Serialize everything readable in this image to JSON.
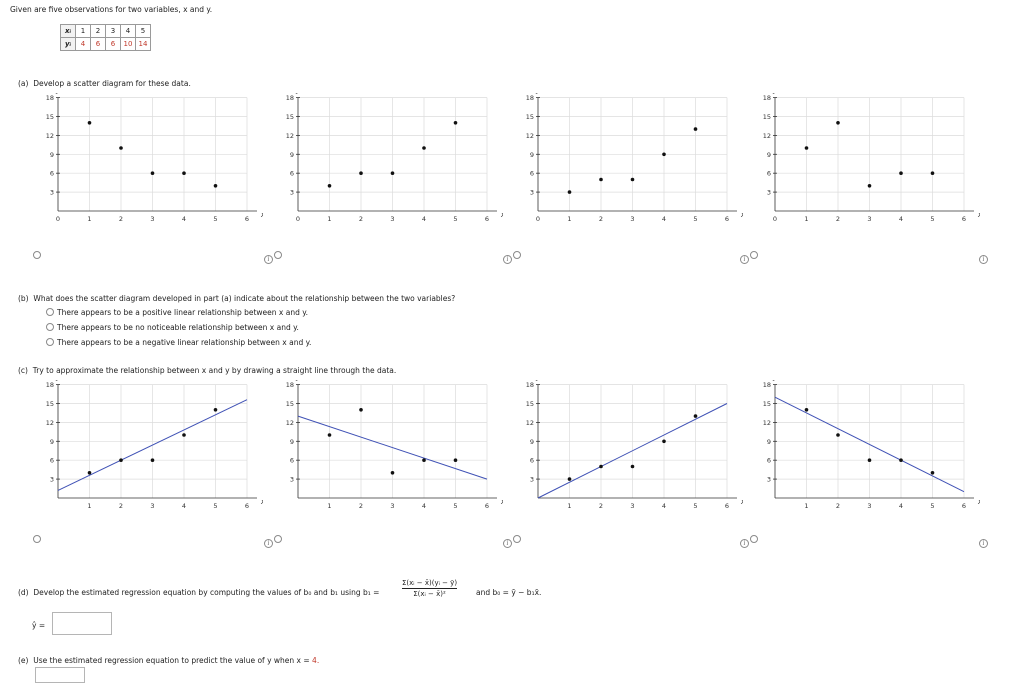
{
  "intro": "Given are five observations for two variables, x and y.",
  "table": {
    "x_label": "xᵢ",
    "y_label": "yᵢ",
    "x": [
      "1",
      "2",
      "3",
      "4",
      "5"
    ],
    "y": [
      "4",
      "6",
      "6",
      "10",
      "14"
    ]
  },
  "part_a": {
    "label": "(a)",
    "text": "Develop a scatter diagram for these data."
  },
  "part_b": {
    "label": "(b)",
    "text": "What does the scatter diagram developed in part (a) indicate about the relationship between the two variables?",
    "options": [
      "There appears to be a positive linear relationship between x and y.",
      "There appears to be no noticeable relationship between x and y.",
      "There appears to be a negative linear relationship between x and y."
    ]
  },
  "part_c": {
    "label": "(c)",
    "text": "Try to approximate the relationship between x and y by drawing a straight line through the data."
  },
  "part_d": {
    "label": "(d)",
    "text": "Develop the estimated regression equation by computing the values of b₀ and b₁ using b₁ =",
    "numerator": "Σ(xᵢ − x̄)(yᵢ − ȳ)",
    "denominator": "Σ(xᵢ − x̄)²",
    "tail": "and b₀ = ȳ − b₁x̄.",
    "yhat_label": "ŷ ="
  },
  "part_e": {
    "label": "(e)",
    "text_pre": "Use the estimated regression equation to predict the value of y when x = ",
    "x_value": "4."
  },
  "axis": {
    "xlabel": "x",
    "ylabel": "y"
  },
  "info_glyph": "i",
  "chart_data": [
    {
      "type": "scatter",
      "xlim": [
        0,
        6
      ],
      "ylim": [
        0,
        18
      ],
      "xticks": [
        0,
        1,
        2,
        3,
        4,
        5,
        6
      ],
      "yticks": [
        3,
        6,
        9,
        12,
        15,
        18
      ],
      "points": [
        [
          1,
          14
        ],
        [
          2,
          10
        ],
        [
          3,
          6
        ],
        [
          4,
          6
        ],
        [
          5,
          4
        ]
      ]
    },
    {
      "type": "scatter",
      "xlim": [
        0,
        6
      ],
      "ylim": [
        0,
        18
      ],
      "xticks": [
        0,
        1,
        2,
        3,
        4,
        5,
        6
      ],
      "yticks": [
        3,
        6,
        9,
        12,
        15,
        18
      ],
      "points": [
        [
          1,
          4
        ],
        [
          2,
          6
        ],
        [
          3,
          6
        ],
        [
          4,
          10
        ],
        [
          5,
          14
        ]
      ]
    },
    {
      "type": "scatter",
      "xlim": [
        0,
        6
      ],
      "ylim": [
        0,
        18
      ],
      "xticks": [
        0,
        1,
        2,
        3,
        4,
        5,
        6
      ],
      "yticks": [
        3,
        6,
        9,
        12,
        15,
        18
      ],
      "points": [
        [
          1,
          3
        ],
        [
          2,
          5
        ],
        [
          3,
          5
        ],
        [
          4,
          9
        ],
        [
          5,
          13
        ]
      ]
    },
    {
      "type": "scatter",
      "xlim": [
        0,
        6
      ],
      "ylim": [
        0,
        18
      ],
      "xticks": [
        0,
        1,
        2,
        3,
        4,
        5,
        6
      ],
      "yticks": [
        3,
        6,
        9,
        12,
        15,
        18
      ],
      "points": [
        [
          1,
          10
        ],
        [
          2,
          14
        ],
        [
          3,
          4
        ],
        [
          4,
          6
        ],
        [
          5,
          6
        ]
      ]
    },
    {
      "type": "scatter",
      "xlim": [
        0,
        6
      ],
      "ylim": [
        0,
        18
      ],
      "xticks": [
        1,
        2,
        3,
        4,
        5,
        6
      ],
      "yticks": [
        3,
        6,
        9,
        12,
        15,
        18
      ],
      "points": [
        [
          1,
          4
        ],
        [
          2,
          6
        ],
        [
          3,
          6
        ],
        [
          4,
          10
        ],
        [
          5,
          14
        ]
      ],
      "line": [
        [
          0,
          1.2
        ],
        [
          6,
          15.6
        ]
      ]
    },
    {
      "type": "scatter",
      "xlim": [
        0,
        6
      ],
      "ylim": [
        0,
        18
      ],
      "xticks": [
        1,
        2,
        3,
        4,
        5,
        6
      ],
      "yticks": [
        3,
        6,
        9,
        12,
        15,
        18
      ],
      "points": [
        [
          1,
          10
        ],
        [
          2,
          14
        ],
        [
          3,
          4
        ],
        [
          4,
          6
        ],
        [
          5,
          6
        ]
      ],
      "line": [
        [
          0,
          13
        ],
        [
          6,
          3
        ]
      ]
    },
    {
      "type": "scatter",
      "xlim": [
        0,
        6
      ],
      "ylim": [
        0,
        18
      ],
      "xticks": [
        1,
        2,
        3,
        4,
        5,
        6
      ],
      "yticks": [
        3,
        6,
        9,
        12,
        15,
        18
      ],
      "points": [
        [
          1,
          3
        ],
        [
          2,
          5
        ],
        [
          3,
          5
        ],
        [
          4,
          9
        ],
        [
          5,
          13
        ]
      ],
      "line": [
        [
          0,
          0
        ],
        [
          6,
          15
        ]
      ]
    },
    {
      "type": "scatter",
      "xlim": [
        0,
        6
      ],
      "ylim": [
        0,
        18
      ],
      "xticks": [
        1,
        2,
        3,
        4,
        5,
        6
      ],
      "yticks": [
        3,
        6,
        9,
        12,
        15,
        18
      ],
      "points": [
        [
          1,
          14
        ],
        [
          2,
          10
        ],
        [
          3,
          6
        ],
        [
          4,
          6
        ],
        [
          5,
          4
        ]
      ],
      "line": [
        [
          0,
          16
        ],
        [
          6,
          1
        ]
      ]
    }
  ]
}
